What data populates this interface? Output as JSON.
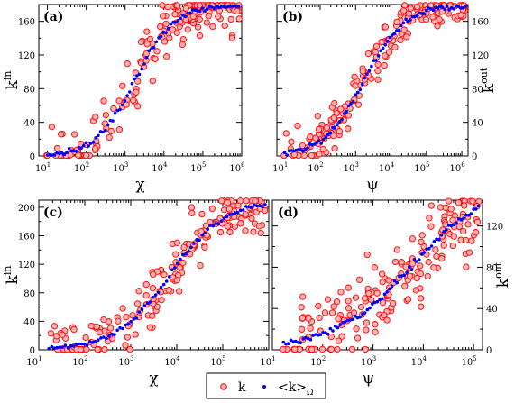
{
  "chart_data": [
    {
      "panel": "(a)",
      "type": "scatter",
      "xscale": "log",
      "xlim": [
        6,
        1000000
      ],
      "ylim": [
        0,
        180
      ],
      "xlabel": "χ",
      "ylabel": "k",
      "ylabel_sup": "in",
      "yaxis_side": "left",
      "xticks": [
        {
          "v": 10,
          "label": "10",
          "sup": "1"
        },
        {
          "v": 100,
          "label": "10",
          "sup": "2"
        },
        {
          "v": 1000,
          "label": "10",
          "sup": "3"
        },
        {
          "v": 10000,
          "label": "10",
          "sup": "4"
        },
        {
          "v": 100000,
          "label": "10",
          "sup": "5"
        },
        {
          "v": 1000000,
          "label": "10",
          "sup": "6"
        }
      ],
      "yticks": [
        0,
        40,
        80,
        120,
        160
      ],
      "series": [
        {
          "name": "k",
          "kind": "circles",
          "a": 1.05,
          "b": 0.055,
          "mode": 0,
          "noise": 20
        },
        {
          "name": "<k>_Ω",
          "kind": "dots",
          "a": 1.05,
          "b": 0.055,
          "mode": 0
        }
      ]
    },
    {
      "panel": "(b)",
      "type": "scatter",
      "xscale": "log",
      "xlim": [
        6,
        1500000
      ],
      "ylim": [
        0,
        180
      ],
      "xlabel": "ψ",
      "ylabel": "k",
      "ylabel_sup": "out",
      "yaxis_side": "right",
      "xticks": [
        {
          "v": 10,
          "label": "10",
          "sup": "1"
        },
        {
          "v": 100,
          "label": "10",
          "sup": "2"
        },
        {
          "v": 1000,
          "label": "10",
          "sup": "3"
        },
        {
          "v": 10000,
          "label": "10",
          "sup": "4"
        },
        {
          "v": 100000,
          "label": "10",
          "sup": "5"
        },
        {
          "v": 1000000,
          "label": "10",
          "sup": "6"
        }
      ],
      "yticks": [
        0,
        40,
        80,
        120,
        160
      ],
      "series": [
        {
          "name": "k",
          "kind": "circles",
          "a": 1.0,
          "b": 0.05,
          "mode": 1,
          "noise": 15
        },
        {
          "name": "<k>_Ω",
          "kind": "dots",
          "a": 1.0,
          "b": 0.05,
          "mode": 1
        }
      ]
    },
    {
      "panel": "(c)",
      "type": "scatter",
      "xscale": "log",
      "xlim": [
        10,
        1000000
      ],
      "ylim": [
        0,
        210
      ],
      "xlabel": "χ",
      "ylabel": "k",
      "ylabel_sup": "in",
      "yaxis_side": "left",
      "xticks": [
        {
          "v": 10,
          "label": "10",
          "sup": "1"
        },
        {
          "v": 100,
          "label": "10",
          "sup": "2"
        },
        {
          "v": 1000,
          "label": "10",
          "sup": "3"
        },
        {
          "v": 10000,
          "label": "10",
          "sup": "4"
        },
        {
          "v": 100000,
          "label": "10",
          "sup": "5"
        }
      ],
      "yticks": [
        0,
        40,
        80,
        120,
        160,
        200
      ],
      "series": [
        {
          "name": "k",
          "kind": "circles",
          "x0": 10,
          "x1": 350000,
          "mode": 2,
          "noise": 25
        },
        {
          "name": "<k>_Ω",
          "kind": "dots",
          "x0": 10,
          "x1": 350000,
          "mode": 2
        }
      ]
    },
    {
      "panel": "(d)",
      "type": "scatter",
      "xscale": "log",
      "xlim": [
        10,
        150000
      ],
      "ylim": [
        0,
        145
      ],
      "xlabel": "ψ",
      "ylabel": "k",
      "ylabel_sup": "out",
      "yaxis_side": "right",
      "xticks": [
        {
          "v": 10,
          "label": "10",
          "sup": "1"
        },
        {
          "v": 100,
          "label": "10",
          "sup": "2"
        },
        {
          "v": 1000,
          "label": "10",
          "sup": "3"
        },
        {
          "v": 10000,
          "label": "10",
          "sup": "4"
        },
        {
          "v": 100000,
          "label": "10",
          "sup": "5"
        }
      ],
      "yticks": [
        0,
        40,
        80,
        120
      ],
      "series": [
        {
          "name": "k",
          "kind": "circles",
          "x0": 10,
          "x1": 100000,
          "mode": 3,
          "noise": 25
        },
        {
          "name": "<k>_Ω",
          "kind": "dots",
          "x0": 10,
          "x1": 100000,
          "mode": 3
        }
      ]
    }
  ],
  "legend": {
    "placement": "bottom-center",
    "items": [
      {
        "label": "k",
        "marker": "circle"
      },
      {
        "label": "<k>",
        "sub": "Ω",
        "marker": "dot"
      }
    ]
  },
  "colors": {
    "circle_stroke": "#ff0000",
    "circle_fill": "#ffb0b0",
    "dot": "#0000ff",
    "axis": "#000000"
  }
}
